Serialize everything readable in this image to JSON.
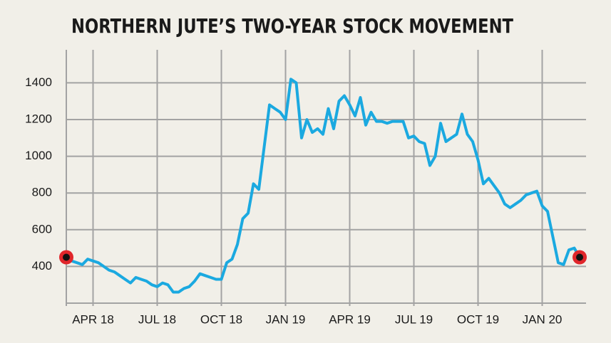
{
  "chart_data": {
    "type": "line",
    "title": "NORTHERN JUTE’S TWO-YEAR STOCK MOVEMENT",
    "categories": [
      null,
      null,
      null,
      null,
      null,
      "APR 18",
      null,
      null,
      null,
      null,
      null,
      null,
      null,
      null,
      null,
      null,
      null,
      "JUL 18",
      null,
      null,
      null,
      null,
      null,
      null,
      null,
      null,
      null,
      null,
      null,
      "OCT 18",
      null,
      null,
      null,
      null,
      null,
      null,
      null,
      null,
      null,
      null,
      null,
      "JAN 19",
      null,
      null,
      null,
      null,
      null,
      null,
      null,
      null,
      null,
      null,
      null,
      "APR 19",
      null,
      null,
      null,
      null,
      null,
      null,
      null,
      null,
      null,
      null,
      null,
      "JUL 19",
      null,
      null,
      null,
      null,
      null,
      null,
      null,
      null,
      null,
      null,
      null,
      "OCT 19",
      null,
      null,
      null,
      null,
      null,
      null,
      null,
      null,
      null,
      null,
      null,
      "JAN 20",
      null,
      null,
      null,
      null,
      null,
      null,
      null
    ],
    "series": [
      {
        "name": "Northern Jute",
        "color": "#1ba9e0",
        "values": [
          450,
          430,
          420,
          410,
          440,
          430,
          420,
          400,
          380,
          370,
          350,
          330,
          310,
          340,
          330,
          320,
          300,
          290,
          310,
          300,
          260,
          260,
          280,
          290,
          320,
          360,
          350,
          340,
          330,
          330,
          420,
          440,
          520,
          660,
          690,
          850,
          820,
          1050,
          1280,
          1260,
          1240,
          1200,
          1420,
          1400,
          1100,
          1200,
          1130,
          1150,
          1120,
          1260,
          1150,
          1300,
          1330,
          1280,
          1220,
          1320,
          1170,
          1240,
          1190,
          1190,
          1180,
          1190,
          1190,
          1190,
          1100,
          1110,
          1080,
          1070,
          950,
          1000,
          1180,
          1080,
          1100,
          1120,
          1230,
          1120,
          1080,
          980,
          850,
          880,
          840,
          800,
          740,
          720,
          740,
          760,
          790,
          800,
          810,
          730,
          700,
          560,
          420,
          410,
          490,
          500,
          450
        ]
      }
    ],
    "ylim": [
      200,
      1580
    ],
    "yticks": [
      400,
      600,
      800,
      1000,
      1200,
      1400
    ],
    "grid": true,
    "end_markers": true,
    "marker_color": "#e0262b"
  }
}
